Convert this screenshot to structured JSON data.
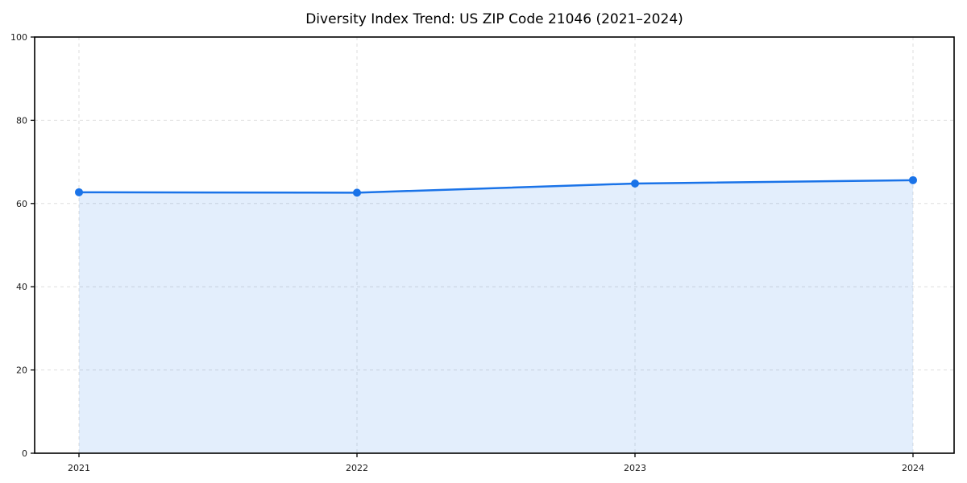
{
  "chart_data": {
    "type": "area",
    "title": "Diversity Index Trend: US ZIP Code 21046 (2021–2024)",
    "x": [
      "2021",
      "2022",
      "2023",
      "2024"
    ],
    "series": [
      {
        "name": "Diversity Index",
        "values": [
          62.7,
          62.6,
          64.8,
          65.6
        ]
      }
    ],
    "xlabel": "",
    "ylabel": "",
    "ylim": [
      0,
      100
    ],
    "yticks": [
      0,
      20,
      40,
      60,
      80,
      100
    ],
    "grid": "dashed-both-axes",
    "legend": "none",
    "colors": {
      "line": "#1a73e8",
      "marker": "#1a73e8",
      "fill": "#1a73e8",
      "fill_opacity": 0.12,
      "grid": "#dedede",
      "axis": "#000000",
      "tick_label": "#1a1a1a",
      "title": "#000000",
      "background": "#ffffff"
    }
  }
}
